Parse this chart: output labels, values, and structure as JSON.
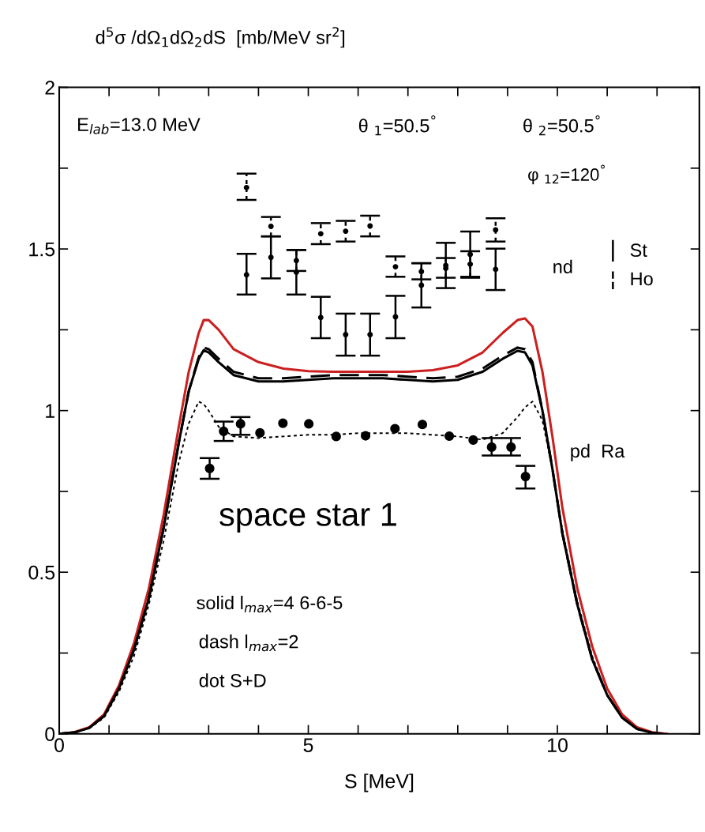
{
  "chart_data": {
    "type": "line",
    "ylabel": "d$^{5}$σ /dΩ$_{1}$dΩ$_{2}$dS  [mb/MeV sr$^{2}$]",
    "xlabel": "S [MeV]",
    "xlim": [
      0,
      12.85
    ],
    "xticks": [
      0,
      {
        "value": 1,
        "label": null
      },
      {
        "value": 2,
        "label": null
      },
      {
        "value": 3,
        "label": null
      },
      {
        "value": 4,
        "label": null
      },
      5,
      {
        "value": 6,
        "label": null
      },
      {
        "value": 7,
        "label": null
      },
      {
        "value": 8,
        "label": null
      },
      {
        "value": 9,
        "label": null
      },
      10,
      {
        "value": 11,
        "label": null
      },
      {
        "value": 12,
        "label": null
      }
    ],
    "ylim": [
      0,
      2
    ],
    "yticks": [
      0,
      {
        "value": 0.25,
        "label": null
      },
      0.5,
      {
        "value": 0.75,
        "label": null
      },
      1,
      {
        "value": 1.25,
        "label": null
      },
      1.5,
      {
        "value": 1.75,
        "label": null
      },
      2
    ],
    "grid": false,
    "legend": "right",
    "annotations": [
      "E$_{lab}$=13.0 MeV",
      "θ $_{1}$=50.5$^{°}$",
      "θ $_{2}$=50.5$^{°}$",
      "φ $_{12}$=120$^{°}$",
      "nd",
      "pd  Ra",
      "space star 1",
      "solid l$_{max}$=4 6-6-5",
      "dash l$_{max}$=2",
      "dot S+D"
    ],
    "series": [
      {
        "type": "line",
        "color": "#cc1f1f",
        "line_style": "solid",
        "x": [
          0,
          0.3,
          0.6,
          0.9,
          1.2,
          1.5,
          1.8,
          2.1,
          2.4,
          2.6,
          2.8,
          2.9,
          3.0,
          3.2,
          3.5,
          4,
          4.5,
          5,
          5.5,
          6,
          6.5,
          7,
          7.5,
          8,
          8.5,
          8.9,
          9.2,
          9.35,
          9.5,
          9.7,
          9.9,
          10.1,
          10.4,
          10.7,
          11,
          11.3,
          11.6,
          11.9,
          12.2
        ],
        "values": [
          0,
          0.005,
          0.02,
          0.06,
          0.15,
          0.28,
          0.45,
          0.68,
          0.95,
          1.12,
          1.24,
          1.28,
          1.28,
          1.25,
          1.19,
          1.15,
          1.13,
          1.122,
          1.12,
          1.12,
          1.12,
          1.12,
          1.125,
          1.14,
          1.18,
          1.24,
          1.28,
          1.285,
          1.26,
          1.12,
          0.92,
          0.7,
          0.45,
          0.27,
          0.14,
          0.06,
          0.02,
          0.005,
          0
        ]
      },
      {
        "type": "line",
        "color": "#000000",
        "line_style": "dashed",
        "x": [
          0,
          0.3,
          0.6,
          0.9,
          1.2,
          1.5,
          1.8,
          2.1,
          2.4,
          2.6,
          2.8,
          2.9,
          3.0,
          3.2,
          3.5,
          4,
          4.5,
          5,
          5.5,
          6,
          6.5,
          7,
          7.5,
          8,
          8.5,
          8.9,
          9.2,
          9.35,
          9.5,
          9.7,
          9.9,
          10.1,
          10.4,
          10.7,
          11,
          11.3,
          11.6,
          11.9,
          12.1
        ],
        "values": [
          0,
          0.004,
          0.018,
          0.055,
          0.14,
          0.26,
          0.42,
          0.64,
          0.9,
          1.06,
          1.165,
          1.195,
          1.19,
          1.16,
          1.12,
          1.1,
          1.1,
          1.105,
          1.11,
          1.11,
          1.11,
          1.105,
          1.1,
          1.105,
          1.13,
          1.17,
          1.195,
          1.19,
          1.15,
          1.0,
          0.82,
          0.62,
          0.4,
          0.23,
          0.12,
          0.05,
          0.015,
          0.003,
          0
        ]
      },
      {
        "type": "line",
        "color": "#000000",
        "line_style": "solid",
        "x": [
          0,
          0.3,
          0.6,
          0.9,
          1.2,
          1.5,
          1.8,
          2.1,
          2.4,
          2.6,
          2.8,
          2.9,
          3.0,
          3.2,
          3.5,
          4,
          4.5,
          5,
          5.5,
          6,
          6.5,
          7,
          7.5,
          8,
          8.5,
          8.9,
          9.2,
          9.35,
          9.5,
          9.7,
          9.9,
          10.1,
          10.4,
          10.7,
          11,
          11.3,
          11.6,
          11.9,
          12.1
        ],
        "values": [
          0,
          0.004,
          0.018,
          0.055,
          0.14,
          0.26,
          0.42,
          0.64,
          0.9,
          1.06,
          1.16,
          1.187,
          1.18,
          1.15,
          1.11,
          1.09,
          1.09,
          1.095,
          1.1,
          1.1,
          1.1,
          1.095,
          1.09,
          1.095,
          1.12,
          1.16,
          1.185,
          1.18,
          1.14,
          1.0,
          0.82,
          0.62,
          0.4,
          0.23,
          0.12,
          0.05,
          0.015,
          0.003,
          0
        ]
      },
      {
        "type": "line",
        "color": "#000000",
        "line_style": "dotted",
        "x": [
          0,
          0.3,
          0.6,
          0.9,
          1.2,
          1.5,
          1.8,
          2.1,
          2.4,
          2.6,
          2.8,
          2.9,
          3.0,
          3.2,
          3.5,
          4,
          4.5,
          5,
          5.5,
          6,
          6.5,
          7,
          7.5,
          8,
          8.5,
          8.9,
          9.2,
          9.35,
          9.5,
          9.7,
          9.9,
          10.1,
          10.4,
          10.7,
          11,
          11.3,
          11.6,
          11.9,
          12.1
        ],
        "values": [
          0,
          0.004,
          0.017,
          0.05,
          0.13,
          0.24,
          0.4,
          0.6,
          0.84,
          0.96,
          1.028,
          1.02,
          1.0,
          0.95,
          0.92,
          0.915,
          0.92,
          0.925,
          0.925,
          0.93,
          0.93,
          0.93,
          0.925,
          0.92,
          0.91,
          0.93,
          0.98,
          1.01,
          1.028,
          0.97,
          0.82,
          0.63,
          0.41,
          0.24,
          0.12,
          0.05,
          0.015,
          0.003,
          0
        ]
      },
      {
        "type": "scatter",
        "name": "St",
        "color": "#000000",
        "marker": "circle",
        "line_style": "solid",
        "x": [
          3.76,
          4.25,
          4.76,
          5.25,
          5.75,
          6.24,
          6.75,
          7.27,
          7.76,
          8.25,
          8.76
        ],
        "values": [
          1.42,
          1.474,
          1.428,
          1.288,
          1.235,
          1.235,
          1.29,
          1.388,
          1.449,
          1.483,
          1.437
        ],
        "errors": [
          [
            1.359,
            1.485
          ],
          [
            1.409,
            1.539
          ],
          [
            1.359,
            1.497
          ],
          [
            1.224,
            1.352
          ],
          [
            1.17,
            1.3
          ],
          [
            1.17,
            1.3
          ],
          [
            1.224,
            1.355
          ],
          [
            1.319,
            1.456
          ],
          [
            1.379,
            1.519
          ],
          [
            1.411,
            1.554
          ],
          [
            1.373,
            1.501
          ]
        ]
      },
      {
        "type": "scatter",
        "name": "Ho",
        "color": "#000000",
        "marker": "circle",
        "line_style": "dotted",
        "x": [
          3.76,
          4.25,
          4.76,
          5.25,
          5.75,
          6.24,
          6.75,
          7.27,
          7.76,
          8.25,
          8.76
        ],
        "values": [
          1.69,
          1.57,
          1.464,
          1.547,
          1.555,
          1.571,
          1.445,
          1.43,
          1.44,
          1.453,
          1.559
        ],
        "errors": [
          [
            1.652,
            1.733
          ],
          [
            1.539,
            1.599
          ],
          [
            1.432,
            1.497
          ],
          [
            1.515,
            1.58
          ],
          [
            1.523,
            1.587
          ],
          [
            1.539,
            1.603
          ],
          [
            1.414,
            1.477
          ],
          [
            1.406,
            1.456
          ],
          [
            1.411,
            1.472
          ],
          [
            1.414,
            1.493
          ],
          [
            1.523,
            1.595
          ]
        ]
      },
      {
        "type": "scatter",
        "color": "#000000",
        "marker": "circle",
        "line_style": "solid",
        "x": [
          3.02,
          3.3,
          3.64,
          4.03,
          4.49,
          5.01,
          5.56,
          6.15,
          6.74,
          7.29,
          7.83,
          8.31,
          8.68,
          9.07,
          9.36
        ],
        "values": [
          0.821,
          0.936,
          0.959,
          0.931,
          0.961,
          0.959,
          0.92,
          0.922,
          0.944,
          0.957,
          0.921,
          0.909,
          0.887,
          0.887,
          0.796
        ],
        "errors": [
          [
            0.789,
            0.853
          ],
          [
            0.906,
            0.966
          ],
          [
            0.925,
            0.98
          ],
          null,
          null,
          null,
          null,
          null,
          null,
          null,
          null,
          null,
          [
            0.861,
            0.915
          ],
          [
            0.861,
            0.915
          ],
          [
            0.759,
            0.829
          ]
        ]
      }
    ]
  }
}
